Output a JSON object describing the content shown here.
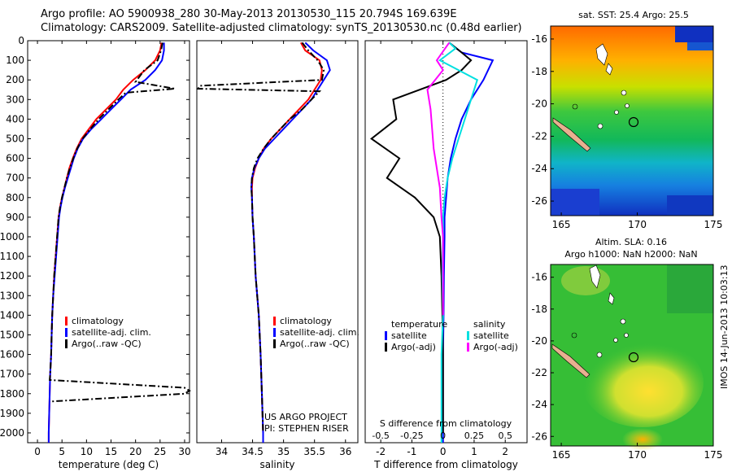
{
  "header": {
    "line1": "Argo profile: AO 5900938_280 30-May-2013 20130530_115 20.794S 169.639E",
    "line2": "Climatology: CARS2009. Satellite-adjusted climatology: synTS_20130530.nc (0.48d earlier)"
  },
  "footer": {
    "imos_label": "IMOS 14-Jun-2013 10:03:13"
  },
  "chart_data": [
    {
      "type": "line",
      "xlabel": "temperature (deg C)",
      "ylabel": "",
      "xlim": [
        -2,
        31
      ],
      "ylim": [
        2050,
        0
      ],
      "xticks": [
        0,
        5,
        10,
        15,
        20,
        25,
        30
      ],
      "yticks": [
        0,
        100,
        200,
        300,
        400,
        500,
        600,
        700,
        800,
        900,
        1000,
        1100,
        1200,
        1300,
        1400,
        1500,
        1600,
        1700,
        1800,
        1900,
        2000
      ],
      "legend": [
        "climatology",
        "satellite-adj. clim.",
        "Argo(..raw -QC)"
      ],
      "series": [
        {
          "name": "climatology",
          "color": "#ff0000",
          "points": [
            [
              25.3,
              10
            ],
            [
              25.0,
              50
            ],
            [
              24.0,
              100
            ],
            [
              22.0,
              150
            ],
            [
              19.5,
              200
            ],
            [
              17.5,
              250
            ],
            [
              16.0,
              300
            ],
            [
              14.0,
              350
            ],
            [
              12.0,
              400
            ],
            [
              10.5,
              450
            ],
            [
              9.0,
              500
            ],
            [
              8.0,
              550
            ],
            [
              7.2,
              600
            ],
            [
              6.5,
              650
            ],
            [
              6.0,
              700
            ],
            [
              5.5,
              750
            ],
            [
              5.0,
              800
            ],
            [
              4.6,
              850
            ],
            [
              4.3,
              900
            ],
            [
              4.0,
              1000
            ],
            [
              3.7,
              1100
            ],
            [
              3.4,
              1200
            ],
            [
              3.2,
              1300
            ],
            [
              3.0,
              1400
            ],
            [
              2.9,
              1500
            ],
            [
              2.8,
              1600
            ],
            [
              2.6,
              1700
            ],
            [
              2.5,
              1800
            ],
            [
              2.4,
              1900
            ],
            [
              2.3,
              2000
            ],
            [
              2.3,
              2050
            ]
          ]
        },
        {
          "name": "satellite-adj. clim.",
          "color": "#0000ff",
          "points": [
            [
              25.8,
              10
            ],
            [
              25.8,
              50
            ],
            [
              25.4,
              100
            ],
            [
              24.0,
              150
            ],
            [
              22.0,
              200
            ],
            [
              19.0,
              250
            ],
            [
              17.0,
              300
            ],
            [
              15.0,
              350
            ],
            [
              13.0,
              400
            ],
            [
              11.0,
              450
            ],
            [
              9.3,
              500
            ],
            [
              8.2,
              550
            ],
            [
              7.4,
              600
            ],
            [
              6.8,
              650
            ],
            [
              6.2,
              700
            ],
            [
              5.6,
              750
            ],
            [
              5.1,
              800
            ],
            [
              4.7,
              850
            ],
            [
              4.4,
              900
            ],
            [
              4.1,
              1000
            ],
            [
              3.8,
              1100
            ],
            [
              3.5,
              1200
            ],
            [
              3.2,
              1300
            ],
            [
              3.0,
              1400
            ],
            [
              2.9,
              1500
            ],
            [
              2.8,
              1600
            ],
            [
              2.6,
              1700
            ],
            [
              2.5,
              1800
            ],
            [
              2.4,
              1900
            ],
            [
              2.3,
              2000
            ],
            [
              2.3,
              2050
            ]
          ]
        },
        {
          "name": "Argo(..raw -QC)",
          "color": "#000000",
          "dash": true,
          "points": [
            [
              25.5,
              10
            ],
            [
              25.2,
              50
            ],
            [
              24.5,
              100
            ],
            [
              21.8,
              150
            ],
            [
              20.0,
              210
            ],
            [
              28.0,
              245
            ],
            [
              18.0,
              265
            ],
            [
              16.5,
              300
            ],
            [
              14.5,
              350
            ],
            [
              12.5,
              400
            ],
            [
              10.8,
              450
            ],
            [
              9.2,
              500
            ],
            [
              8.1,
              550
            ],
            [
              7.3,
              600
            ],
            [
              6.6,
              650
            ],
            [
              6.0,
              700
            ],
            [
              5.5,
              750
            ],
            [
              5.0,
              800
            ],
            [
              4.6,
              850
            ],
            [
              4.3,
              900
            ],
            [
              4.0,
              1000
            ],
            [
              3.7,
              1100
            ],
            [
              3.4,
              1200
            ],
            [
              3.2,
              1300
            ],
            [
              3.0,
              1400
            ],
            [
              2.9,
              1500
            ],
            [
              2.8,
              1600
            ],
            [
              2.6,
              1700
            ],
            [
              2.5,
              1730
            ],
            [
              30.0,
              1770
            ],
            [
              31.0,
              1785
            ],
            [
              30.0,
              1800
            ],
            [
              2.5,
              1840
            ]
          ]
        }
      ]
    },
    {
      "type": "line",
      "xlabel": "salinity",
      "xlim": [
        33.6,
        36.2
      ],
      "ylim": [
        2050,
        0
      ],
      "xticks": [
        34,
        34.5,
        35,
        35.5,
        36
      ],
      "legend": [
        "climatology",
        "satellite-adj. clim.",
        "Argo(..raw -QC)"
      ],
      "annotation": [
        "US ARGO PROJECT",
        "PI: STEPHEN RISER"
      ],
      "series": [
        {
          "name": "climatology",
          "color": "#ff0000",
          "points": [
            [
              35.28,
              10
            ],
            [
              35.35,
              50
            ],
            [
              35.58,
              100
            ],
            [
              35.62,
              150
            ],
            [
              35.6,
              200
            ],
            [
              35.5,
              250
            ],
            [
              35.4,
              300
            ],
            [
              35.25,
              350
            ],
            [
              35.1,
              400
            ],
            [
              34.95,
              450
            ],
            [
              34.8,
              500
            ],
            [
              34.68,
              550
            ],
            [
              34.6,
              600
            ],
            [
              34.54,
              650
            ],
            [
              34.5,
              700
            ],
            [
              34.49,
              750
            ],
            [
              34.49,
              800
            ],
            [
              34.5,
              900
            ],
            [
              34.52,
              1000
            ],
            [
              34.55,
              1200
            ],
            [
              34.6,
              1400
            ],
            [
              34.63,
              1600
            ],
            [
              34.65,
              1800
            ],
            [
              34.67,
              2000
            ],
            [
              34.67,
              2050
            ]
          ]
        },
        {
          "name": "satellite-adj. clim.",
          "color": "#0000ff",
          "points": [
            [
              35.35,
              10
            ],
            [
              35.48,
              50
            ],
            [
              35.7,
              100
            ],
            [
              35.75,
              150
            ],
            [
              35.65,
              200
            ],
            [
              35.55,
              250
            ],
            [
              35.45,
              300
            ],
            [
              35.3,
              350
            ],
            [
              35.15,
              400
            ],
            [
              35.0,
              450
            ],
            [
              34.85,
              500
            ],
            [
              34.7,
              550
            ],
            [
              34.6,
              600
            ],
            [
              34.53,
              650
            ],
            [
              34.49,
              700
            ],
            [
              34.48,
              750
            ],
            [
              34.49,
              800
            ],
            [
              34.5,
              900
            ],
            [
              34.52,
              1000
            ],
            [
              34.55,
              1200
            ],
            [
              34.6,
              1400
            ],
            [
              34.63,
              1600
            ],
            [
              34.65,
              1800
            ],
            [
              34.67,
              2000
            ],
            [
              34.67,
              2050
            ]
          ]
        },
        {
          "name": "Argo(..raw -QC)",
          "color": "#000000",
          "dash": true,
          "points": [
            [
              35.3,
              10
            ],
            [
              35.4,
              50
            ],
            [
              35.55,
              100
            ],
            [
              35.65,
              150
            ],
            [
              35.62,
              200
            ],
            [
              33.65,
              230
            ],
            [
              33.62,
              245
            ],
            [
              35.58,
              258
            ],
            [
              35.45,
              300
            ],
            [
              35.3,
              350
            ],
            [
              35.1,
              400
            ],
            [
              34.95,
              450
            ],
            [
              34.8,
              500
            ],
            [
              34.68,
              550
            ],
            [
              34.58,
              600
            ],
            [
              34.52,
              650
            ],
            [
              34.49,
              700
            ],
            [
              34.48,
              750
            ],
            [
              34.49,
              800
            ],
            [
              34.5,
              900
            ],
            [
              34.52,
              1000
            ],
            [
              34.55,
              1200
            ],
            [
              34.6,
              1400
            ],
            [
              34.63,
              1600
            ],
            [
              34.65,
              1800
            ],
            [
              34.67,
              2000
            ]
          ]
        }
      ]
    },
    {
      "type": "line",
      "xlabel": "T difference from climatology",
      "xlabel_top": "S difference from climatology",
      "xlim": [
        -2.5,
        2.7
      ],
      "ylim": [
        2050,
        0
      ],
      "xticks": [
        -2,
        -1,
        0,
        1,
        2
      ],
      "xticks_top_labels": [
        "-0.5",
        "-0.25",
        "0",
        "0.25",
        "0.5"
      ],
      "legend_temperature": [
        "temperature",
        "satellite",
        "Argo(-adj)"
      ],
      "legend_salinity": [
        "salinity",
        "satellite",
        "Argo(-adj)"
      ],
      "series": [
        {
          "name": "temperature satellite",
          "color": "#0000ff",
          "points": [
            [
              0.2,
              10
            ],
            [
              0.6,
              60
            ],
            [
              1.6,
              100
            ],
            [
              1.3,
              200
            ],
            [
              0.9,
              300
            ],
            [
              0.6,
              400
            ],
            [
              0.4,
              500
            ],
            [
              0.25,
              600
            ],
            [
              0.15,
              700
            ],
            [
              0.1,
              800
            ],
            [
              0.05,
              900
            ],
            [
              0.05,
              1000
            ],
            [
              0.03,
              1200
            ],
            [
              0.02,
              1400
            ],
            [
              0.0,
              1600
            ],
            [
              0.0,
              1800
            ],
            [
              0.0,
              2050
            ]
          ]
        },
        {
          "name": "temperature Argo(-adj)",
          "color": "#000000",
          "points": [
            [
              0.2,
              10
            ],
            [
              0.6,
              60
            ],
            [
              0.9,
              100
            ],
            [
              0.6,
              150
            ],
            [
              0.1,
              200
            ],
            [
              -1.6,
              300
            ],
            [
              -1.5,
              400
            ],
            [
              -2.3,
              500
            ],
            [
              -1.4,
              600
            ],
            [
              -1.8,
              700
            ],
            [
              -0.9,
              800
            ],
            [
              -0.3,
              900
            ],
            [
              -0.1,
              1000
            ],
            [
              -0.05,
              1200
            ],
            [
              -0.02,
              1400
            ],
            [
              0.0,
              1600
            ],
            [
              0.0,
              2000
            ]
          ]
        },
        {
          "name": "salinity satellite",
          "color": "#00e0e0",
          "points": [
            [
              0.2,
              10
            ],
            [
              0.4,
              40
            ],
            [
              -0.1,
              100
            ],
            [
              1.1,
              200
            ],
            [
              0.9,
              300
            ],
            [
              0.7,
              400
            ],
            [
              0.5,
              500
            ],
            [
              0.3,
              600
            ],
            [
              0.15,
              700
            ],
            [
              0.05,
              800
            ],
            [
              0.0,
              900
            ],
            [
              0.0,
              1000
            ],
            [
              -0.02,
              1200
            ],
            [
              0.0,
              1400
            ],
            [
              -0.05,
              1600
            ],
            [
              -0.05,
              1800
            ],
            [
              -0.05,
              2050
            ]
          ]
        },
        {
          "name": "salinity Argo(-adj)",
          "color": "#ff00ff",
          "points": [
            [
              0.2,
              10
            ],
            [
              -0.2,
              100
            ],
            [
              0.0,
              150
            ],
            [
              -0.5,
              250
            ],
            [
              -0.4,
              350
            ],
            [
              -0.35,
              450
            ],
            [
              -0.3,
              550
            ],
            [
              -0.2,
              650
            ],
            [
              -0.1,
              750
            ],
            [
              -0.05,
              900
            ],
            [
              0.0,
              1000
            ],
            [
              0.0,
              1200
            ],
            [
              0.0,
              1400
            ]
          ]
        }
      ]
    }
  ],
  "maps": [
    {
      "title": "sat. SST: 25.4 Argo: 25.5",
      "xticks": [
        "165",
        "170",
        "175"
      ],
      "yticks": [
        "-16",
        "-18",
        "-20",
        "-22",
        "-24",
        "-26"
      ],
      "marker": [
        169.639,
        -20.794
      ]
    },
    {
      "title_line1": "Altim. SLA: 0.16",
      "title_line2": "Argo h1000: NaN h2000: NaN",
      "xticks": [
        "165",
        "170",
        "175"
      ],
      "yticks": [
        "-16",
        "-18",
        "-20",
        "-22",
        "-24",
        "-26"
      ],
      "marker": [
        169.639,
        -20.794
      ]
    }
  ]
}
